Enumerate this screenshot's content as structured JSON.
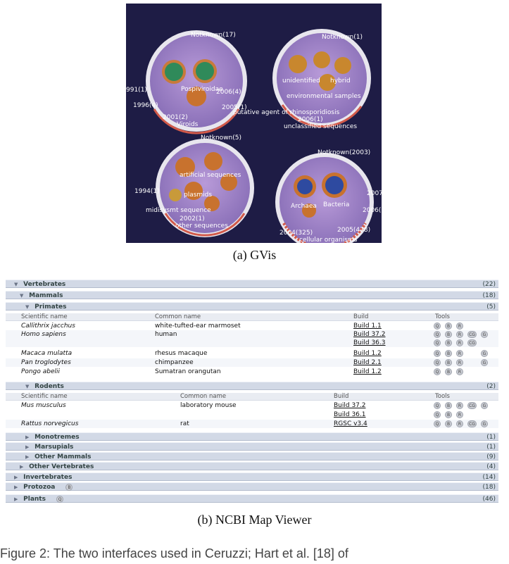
{
  "gvis": {
    "top_left": {
      "label_top": "Notknown(17)",
      "center": "Pospiviroidae",
      "bottom": "Viroids",
      "left_1": "991(1)",
      "left_2": "1996(4)",
      "right_1": "2006(4)",
      "right_2": "2005(1)",
      "bottom_year": "2001(2)"
    },
    "top_right": {
      "label_top": "Notknown(1)",
      "unidentified": "unidentified",
      "hybrid": "hybrid",
      "env": "environmental samples",
      "putative": "putative agent of rhinosporidiosis",
      "year": "2006(1)",
      "unclassified": "unclassified sequences"
    },
    "bottom_left": {
      "label_top": "Notknown(5)",
      "artificial": "artificial sequences",
      "plasmids": "plasmids",
      "left_year": "1994(1)",
      "midisys": "midisysmt sequence",
      "year": "2002(1)",
      "other": "other sequences"
    },
    "bottom_right": {
      "label_top": "Notknown(2003)",
      "archaea": "Archaea",
      "bacteria": "Bacteria",
      "right_1": "2007",
      "right_2": "2006(",
      "year_left": "2004(325)",
      "year_right": "2005(478)",
      "cellular": "cellular organisms"
    }
  },
  "captions": {
    "a": "(a)  GVis",
    "b": "(b)  NCBI Map Viewer"
  },
  "ncbi": {
    "vertebrates": {
      "label": "Vertebrates",
      "count": "(22)"
    },
    "mammals": {
      "label": "Mammals",
      "count": "(18)"
    },
    "primates": {
      "label": "Primates",
      "count": "(5)"
    },
    "headers": {
      "sci": "Scientific name",
      "common": "Common name",
      "build": "Build",
      "tools": "Tools"
    },
    "primate_rows": [
      {
        "sci": "Callithrix jacchus",
        "common": "white-tufted-ear marmoset",
        "build": "Build 1.1"
      },
      {
        "sci": "Homo sapiens",
        "common": "human",
        "build": "Build 37.2"
      },
      {
        "sci": "",
        "common": "",
        "build": "Build 36.3"
      },
      {
        "sci": "Macaca mulatta",
        "common": "rhesus macaque",
        "build": "Build 1.2"
      },
      {
        "sci": "Pan troglodytes",
        "common": "chimpanzee",
        "build": "Build 2.1"
      },
      {
        "sci": "Pongo abelii",
        "common": "Sumatran orangutan",
        "build": "Build 1.2"
      }
    ],
    "rodents": {
      "label": "Rodents",
      "count": "(2)"
    },
    "rodent_rows": [
      {
        "sci": "Mus musculus",
        "common": "laboratory mouse",
        "build": "Build 37.2"
      },
      {
        "sci": "",
        "common": "",
        "build": "Build 36.1"
      },
      {
        "sci": "Rattus norvegicus",
        "common": "rat",
        "build": "RGSC v3.4"
      }
    ],
    "monotremes": {
      "label": "Monotremes",
      "count": "(1)"
    },
    "marsupials": {
      "label": "Marsupials",
      "count": "(1)"
    },
    "other_mammals": {
      "label": "Other Mammals",
      "count": "(9)"
    },
    "other_vertebrates": {
      "label": "Other Vertebrates",
      "count": "(4)"
    },
    "invertebrates": {
      "label": "Invertebrates",
      "count": "(14)"
    },
    "protozoa": {
      "label": "Protozoa",
      "count": "(18)"
    },
    "plants": {
      "label": "Plants",
      "count": "(46)"
    },
    "tool_glyphs": {
      "q": "Q",
      "b": "B",
      "r": "R",
      "cg": "CG",
      "g": "G"
    }
  },
  "footnote": "Figure 2: The two interfaces used in Ceruzzi; Hart et al. [18] of"
}
